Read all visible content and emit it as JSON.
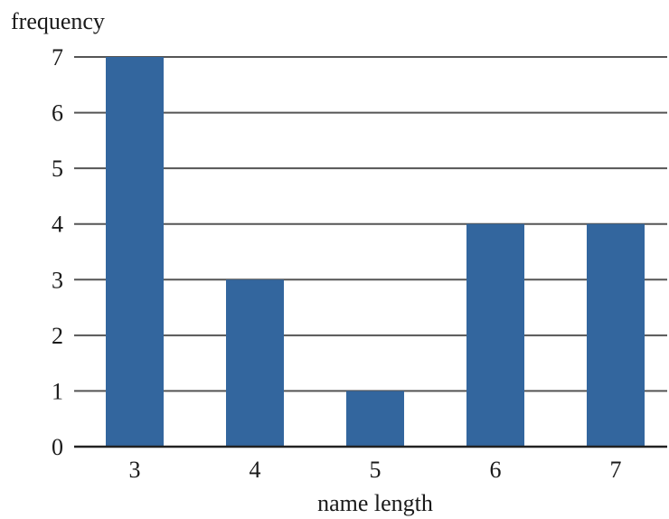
{
  "chart_data": {
    "type": "bar",
    "categories": [
      "3",
      "4",
      "5",
      "6",
      "7"
    ],
    "values": [
      7,
      3,
      1,
      4,
      4
    ],
    "xlabel": "name length",
    "ylabel": "frequency",
    "ylim": [
      0,
      7
    ],
    "yticks": [
      0,
      1,
      2,
      3,
      4,
      5,
      6,
      7
    ],
    "grid": true,
    "bar_color": "#33669e"
  }
}
